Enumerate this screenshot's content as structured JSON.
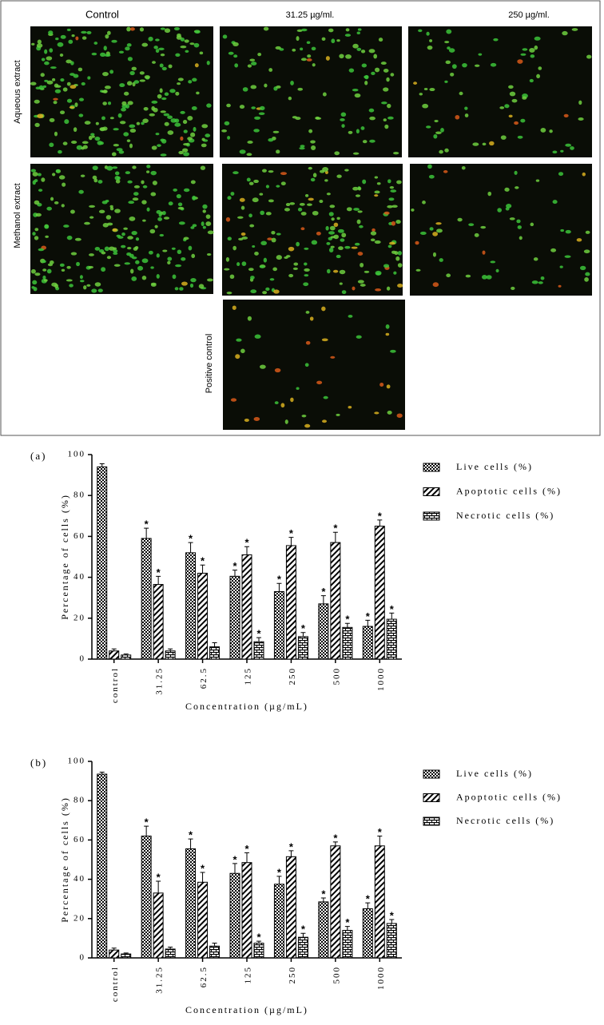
{
  "micrographs": {
    "columns": [
      "Control",
      "31.25 µg/ml.",
      "250 µg/ml."
    ],
    "rows": [
      "Aqueous extract",
      "Methanol extract"
    ],
    "extra": "Positive control"
  },
  "chart_data": [
    {
      "type": "bar",
      "title": "(a)",
      "xlabel": "Concentration (µg/mL)",
      "ylabel": "Percentage of cells (%)",
      "categories": [
        "control",
        "31.25",
        "62.5",
        "125",
        "250",
        "500",
        "1000"
      ],
      "ylim": [
        0,
        100
      ],
      "yticks": [
        0,
        20,
        40,
        60,
        80,
        100
      ],
      "series": [
        {
          "name": "Live cells (%)",
          "color": "#000000",
          "pattern": "checker",
          "values": [
            94,
            59,
            52,
            40.5,
            33,
            27,
            16
          ],
          "errors": [
            1.5,
            5,
            5,
            3,
            4,
            4,
            3
          ],
          "annotations": [
            null,
            "*",
            "*",
            "*",
            "*",
            "*",
            "*"
          ]
        },
        {
          "name": "Apoptotic cells (%)",
          "color": "#000000",
          "pattern": "diagonal",
          "values": [
            4,
            36.5,
            42,
            51,
            55.5,
            57,
            65
          ],
          "errors": [
            1,
            4,
            4,
            4,
            4,
            5,
            3
          ],
          "annotations": [
            null,
            "*",
            "*",
            "*",
            "*",
            "*",
            "*"
          ]
        },
        {
          "name": "Necrotic cells (%)",
          "color": "#000000",
          "pattern": "brick",
          "values": [
            2,
            4,
            6,
            8.5,
            11,
            15.5,
            19.5
          ],
          "errors": [
            0.5,
            1,
            2,
            2,
            2,
            2,
            3
          ],
          "annotations": [
            null,
            null,
            null,
            "*",
            "*",
            "*",
            "*"
          ]
        }
      ]
    },
    {
      "type": "bar",
      "title": "(b)",
      "xlabel": "Concentration (µg/mL)",
      "ylabel": "Percentage of cells (%)",
      "categories": [
        "control",
        "31.25",
        "62.5",
        "125",
        "250",
        "500",
        "1000"
      ],
      "ylim": [
        0,
        100
      ],
      "yticks": [
        0,
        20,
        40,
        60,
        80,
        100
      ],
      "series": [
        {
          "name": "Live cells (%)",
          "color": "#000000",
          "pattern": "checker",
          "values": [
            93.5,
            62,
            55.5,
            43,
            37.5,
            28.5,
            25
          ],
          "errors": [
            1,
            5,
            5,
            5,
            4,
            2,
            3
          ],
          "annotations": [
            null,
            "*",
            "*",
            "*",
            "*",
            "*",
            "*"
          ]
        },
        {
          "name": "Apoptotic cells (%)",
          "color": "#000000",
          "pattern": "diagonal",
          "values": [
            4,
            33,
            38.5,
            48.5,
            51.5,
            57,
            57
          ],
          "errors": [
            1,
            6,
            5,
            5,
            3,
            2,
            5
          ],
          "annotations": [
            null,
            "*",
            "*",
            "*",
            "*",
            "*",
            "*"
          ]
        },
        {
          "name": "Necrotic cells (%)",
          "color": "#000000",
          "pattern": "brick",
          "values": [
            2,
            4.5,
            6,
            7.5,
            10.5,
            14,
            17.5
          ],
          "errors": [
            0.5,
            1,
            1.5,
            1,
            2,
            2,
            2
          ],
          "annotations": [
            null,
            null,
            null,
            "*",
            "*",
            "*",
            "*"
          ]
        }
      ]
    }
  ]
}
